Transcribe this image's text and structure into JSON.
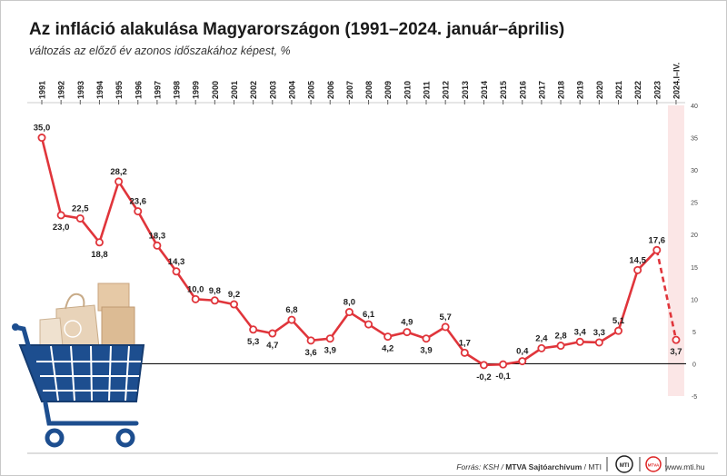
{
  "title": "Az infláció alakulása Magyarországon (1991–2024. január–április)",
  "subtitle": "változás az előző év azonos időszakához képest, %",
  "footer": {
    "source_prefix": "Forrás: KSH / ",
    "source_org": "MTVA Sajtóarchívum",
    "source_suffix": " / MTI",
    "url": "www.mti.hu",
    "logo_mti_text": "MTI",
    "logo_mtva_text": "MTVA"
  },
  "chart_data": {
    "type": "line",
    "x": [
      "1991",
      "1992",
      "1993",
      "1994",
      "1995",
      "1996",
      "1997",
      "1998",
      "1999",
      "2000",
      "2001",
      "2002",
      "2003",
      "2004",
      "2005",
      "2006",
      "2007",
      "2008",
      "2009",
      "2010",
      "2011",
      "2012",
      "2013",
      "2014",
      "2015",
      "2016",
      "2017",
      "2018",
      "2019",
      "2020",
      "2021",
      "2022",
      "2023",
      "2024.I–IV."
    ],
    "values": [
      35.0,
      23.0,
      22.5,
      18.8,
      28.2,
      23.6,
      18.3,
      14.3,
      10.0,
      9.8,
      9.2,
      5.3,
      4.7,
      6.8,
      3.6,
      3.9,
      8.0,
      6.1,
      4.2,
      4.9,
      3.9,
      5.7,
      1.7,
      -0.2,
      -0.1,
      0.4,
      2.4,
      2.8,
      3.4,
      3.3,
      5.1,
      14.5,
      17.6,
      3.7
    ],
    "data_labels": [
      "35,0",
      "23,0",
      "22,5",
      "18,8",
      "28,2",
      "23,6",
      "18,3",
      "14,3",
      "10,0",
      "9,8",
      "9,2",
      "5,3",
      "4,7",
      "6,8",
      "3,6",
      "3,9",
      "8,0",
      "6,1",
      "4,2",
      "4,9",
      "3,9",
      "5,7",
      "1,7",
      "-0,2",
      "-0,1",
      "0,4",
      "2,4",
      "2,8",
      "3,4",
      "3,3",
      "5,1",
      "14,5",
      "17,6",
      "3,7"
    ],
    "label_position": [
      "above",
      "below",
      "above",
      "below",
      "above",
      "above",
      "above",
      "above",
      "above",
      "above",
      "above",
      "below",
      "below",
      "above",
      "below",
      "below",
      "above",
      "above",
      "below",
      "above",
      "below",
      "above",
      "above",
      "below",
      "below",
      "above",
      "above",
      "above",
      "above",
      "above",
      "above",
      "above",
      "above",
      "below"
    ],
    "ylim": [
      -5,
      40
    ],
    "yticks": [
      -5,
      0,
      5,
      10,
      15,
      20,
      25,
      30,
      35,
      40
    ],
    "grid": false,
    "line_color": "#e0353b",
    "marker_fill": "#ffffff",
    "highlight_band_color": "#fbe6e6",
    "partial_period_dashed": true,
    "zero_line": true
  }
}
